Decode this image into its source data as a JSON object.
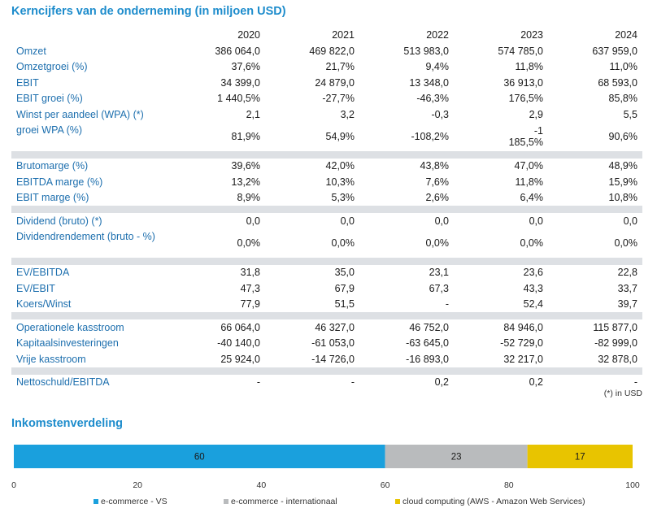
{
  "table": {
    "title": "Kerncijfers van de onderneming (in miljoen USD)",
    "years": [
      "2020",
      "2021",
      "2022",
      "2023",
      "2024"
    ],
    "groups": [
      [
        {
          "label": "Omzet",
          "values": [
            "386 064,0",
            "469 822,0",
            "513 983,0",
            "574 785,0",
            "637 959,0"
          ]
        },
        {
          "label": "Omzetgroei (%)",
          "values": [
            "37,6%",
            "21,7%",
            "9,4%",
            "11,8%",
            "11,0%"
          ]
        },
        {
          "label": "EBIT",
          "values": [
            "34 399,0",
            "24 879,0",
            "13 348,0",
            "36 913,0",
            "68 593,0"
          ]
        },
        {
          "label": "EBIT groei (%)",
          "values": [
            "1 440,5%",
            "-27,7%",
            "-46,3%",
            "176,5%",
            "85,8%"
          ]
        },
        {
          "label": "Winst per aandeel (WPA) (*)",
          "values": [
            "2,1",
            "3,2",
            "-0,3",
            "2,9",
            "5,5"
          ]
        },
        {
          "label": "groei WPA (%)",
          "values": [
            "81,9%",
            "54,9%",
            "-108,2%",
            "-1 185,5%",
            "90,6%"
          ],
          "tall": true,
          "wrapcol": 3
        }
      ],
      [
        {
          "label": "Brutomarge (%)",
          "values": [
            "39,6%",
            "42,0%",
            "43,8%",
            "47,0%",
            "48,9%"
          ]
        },
        {
          "label": "EBITDA marge (%)",
          "values": [
            "13,2%",
            "10,3%",
            "7,6%",
            "11,8%",
            "15,9%"
          ]
        },
        {
          "label": "EBIT marge (%)",
          "values": [
            "8,9%",
            "5,3%",
            "2,6%",
            "6,4%",
            "10,8%"
          ]
        }
      ],
      [
        {
          "label": "Dividend (bruto) (*)",
          "values": [
            "0,0",
            "0,0",
            "0,0",
            "0,0",
            "0,0"
          ]
        },
        {
          "label": "Dividendrendement (bruto - %)",
          "values": [
            "0,0%",
            "0,0%",
            "0,0%",
            "0,0%",
            "0,0%"
          ],
          "tall": true
        }
      ],
      [
        {
          "label": "EV/EBITDA",
          "values": [
            "31,8",
            "35,0",
            "23,1",
            "23,6",
            "22,8"
          ]
        },
        {
          "label": "EV/EBIT",
          "values": [
            "47,3",
            "67,9",
            "67,3",
            "43,3",
            "33,7"
          ]
        },
        {
          "label": "Koers/Winst",
          "values": [
            "77,9",
            "51,5",
            "-",
            "52,4",
            "39,7"
          ]
        }
      ],
      [
        {
          "label": "Operationele kasstroom",
          "values": [
            "66 064,0",
            "46 327,0",
            "46 752,0",
            "84 946,0",
            "115 877,0"
          ]
        },
        {
          "label": "Kapitaalsinvesteringen",
          "values": [
            "-40 140,0",
            "-61 053,0",
            "-63 645,0",
            "-52 729,0",
            "-82 999,0"
          ]
        },
        {
          "label": "Vrije kasstroom",
          "values": [
            "25 924,0",
            "-14 726,0",
            "-16 893,0",
            "32 217,0",
            "32 878,0"
          ]
        }
      ],
      [
        {
          "label": "Nettoschuld/EBITDA",
          "values": [
            "-",
            "-",
            "0,2",
            "0,2",
            "-"
          ]
        }
      ]
    ],
    "footnote": "(*) in USD"
  },
  "chart_data": {
    "type": "bar",
    "orientation": "horizontal-stacked",
    "title": "Inkomstenverdeling",
    "series": [
      {
        "name": "e-commerce - VS",
        "value": 60,
        "color": "#1aa0dd"
      },
      {
        "name": "e-commerce - internationaal",
        "value": 23,
        "color": "#b9bbbd"
      },
      {
        "name": "cloud computing (AWS - Amazon Web Services)",
        "value": 17,
        "color": "#e8c400"
      }
    ],
    "xlim": [
      0,
      100
    ],
    "xticks": [
      0,
      20,
      40,
      60,
      80,
      100
    ],
    "legend": "bottom"
  }
}
